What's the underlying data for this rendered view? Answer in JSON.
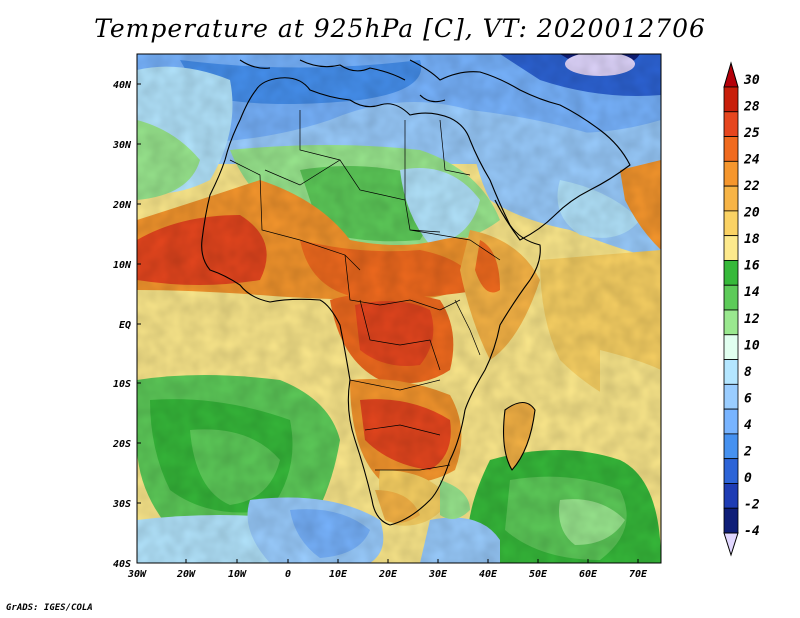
{
  "title": "Temperature at 925hPa [C], VT: 2020012706",
  "credit": "GrADS: IGES/COLA",
  "map": {
    "lat_labels": [
      "40N",
      "30N",
      "20N",
      "10N",
      "EQ",
      "10S",
      "20S",
      "30S",
      "40S"
    ],
    "lon_labels": [
      "30W",
      "20W",
      "10W",
      "0",
      "10E",
      "20E",
      "30E",
      "40E",
      "50E",
      "60E",
      "70E"
    ]
  },
  "colorbar": {
    "labels": [
      "30",
      "28",
      "25",
      "24",
      "22",
      "20",
      "18",
      "16",
      "14",
      "12",
      "10",
      "8",
      "6",
      "4",
      "2",
      "0",
      "-2",
      "-4"
    ],
    "colors": [
      "#c81e0a",
      "#e6461e",
      "#f06a1e",
      "#f5962d",
      "#f7b446",
      "#fad264",
      "#fde98c",
      "#36b93a",
      "#5dcb59",
      "#9ae88f",
      "#e1fff0",
      "#b4e6ff",
      "#9acdff",
      "#78b4ff",
      "#4691f0",
      "#2d64d7",
      "#1e3cb4",
      "#0f1e78"
    ],
    "top_arrow_color": "#b4000a",
    "bottom_arrow_color": "#e1d7ff"
  }
}
